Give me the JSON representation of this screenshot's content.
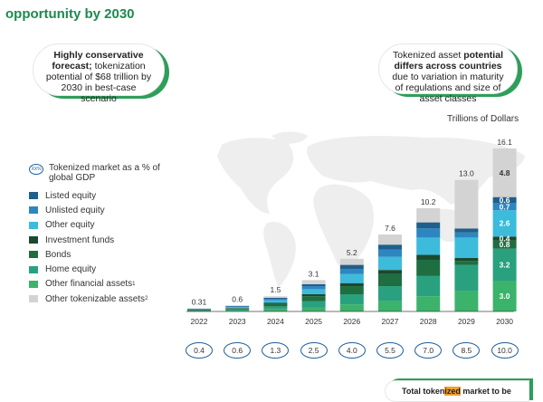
{
  "title": {
    "line1": "opportunity by 2030"
  },
  "callouts": {
    "left": {
      "bold": "Highly conservative forecast;",
      "rest": "tokenization potential of $68 trillion by 2030 in best-case scenario"
    },
    "right": {
      "normal1": "Tokenized asset ",
      "bold": "potential differs across countries",
      "rest": " due to variation in maturity of regulations and size of asset classes"
    }
  },
  "unit_label": "Trillions of Dollars",
  "legend": {
    "gdp_badge": "XX%",
    "gdp_label": "Tokenized market as a % of global GDP",
    "items": [
      {
        "label": "Listed equity",
        "sup": "",
        "color": "#1f5f8b"
      },
      {
        "label": "Unlisted equity",
        "sup": "",
        "color": "#2e86c1"
      },
      {
        "label": "Other equity",
        "sup": "",
        "color": "#3dbbdb"
      },
      {
        "label": "Investment funds",
        "sup": "",
        "color": "#1a4a2e"
      },
      {
        "label": "Bonds",
        "sup": "",
        "color": "#1e6e42"
      },
      {
        "label": "Home equity",
        "sup": "",
        "color": "#2aa17e"
      },
      {
        "label": "Other financial assets",
        "sup": "1",
        "color": "#3cb36b"
      },
      {
        "label": "Other tokenizable assets",
        "sup": "2",
        "color": "#d3d3d3"
      }
    ]
  },
  "bottom_pill": {
    "pre": "Total token",
    "hl": "ized",
    "post": " market to be"
  },
  "chart_data": {
    "type": "bar",
    "stacked": true,
    "categories": [
      "2022",
      "2023",
      "2024",
      "2025",
      "2026",
      "2027",
      "2028",
      "2029",
      "2030"
    ],
    "totals": [
      "0.31",
      "0.6",
      "1.5",
      "3.1",
      "5.2",
      "7.6",
      "10.2",
      "13.0",
      "16.1"
    ],
    "gdp_percent": [
      "0.4",
      "0.6",
      "1.3",
      "2.5",
      "4.0",
      "5.5",
      "7.0",
      "8.5",
      "10.0"
    ],
    "ylim": [
      0,
      16.1
    ],
    "series": [
      {
        "name": "Other financial assets",
        "color": "#3cb36b",
        "values": [
          0.04,
          0.08,
          0.2,
          0.4,
          0.7,
          1.0,
          1.5,
          2.0,
          3.0
        ]
      },
      {
        "name": "Home equity",
        "color": "#2aa17e",
        "values": [
          0.06,
          0.12,
          0.3,
          0.6,
          1.0,
          1.5,
          2.0,
          2.6,
          3.2
        ]
      },
      {
        "name": "Bonds",
        "color": "#1e6e42",
        "values": [
          0.05,
          0.1,
          0.25,
          0.5,
          0.8,
          1.2,
          1.6,
          0.4,
          0.8
        ]
      },
      {
        "name": "Investment funds",
        "color": "#1a4a2e",
        "values": [
          0.02,
          0.04,
          0.1,
          0.2,
          0.3,
          0.4,
          0.5,
          0.3,
          0.4
        ]
      },
      {
        "name": "Other equity",
        "color": "#3dbbdb",
        "values": [
          0.05,
          0.1,
          0.25,
          0.5,
          0.9,
          1.3,
          1.7,
          2.0,
          2.6
        ]
      },
      {
        "name": "Unlisted equity",
        "color": "#2e86c1",
        "values": [
          0.03,
          0.06,
          0.15,
          0.3,
          0.5,
          0.7,
          0.9,
          0.5,
          0.7
        ]
      },
      {
        "name": "Listed equity",
        "color": "#1f5f8b",
        "values": [
          0.02,
          0.04,
          0.1,
          0.2,
          0.4,
          0.5,
          0.6,
          0.4,
          0.6
        ]
      },
      {
        "name": "Other tokenizable assets",
        "color": "#d3d3d3",
        "values": [
          0.04,
          0.06,
          0.15,
          0.4,
          0.6,
          1.0,
          1.4,
          4.8,
          4.8
        ]
      }
    ],
    "segment_labels_2030": [
      "3.0",
      "3.2",
      "0.8",
      "0.4",
      "2.6",
      "0.7",
      "0.6",
      "4.8"
    ]
  }
}
